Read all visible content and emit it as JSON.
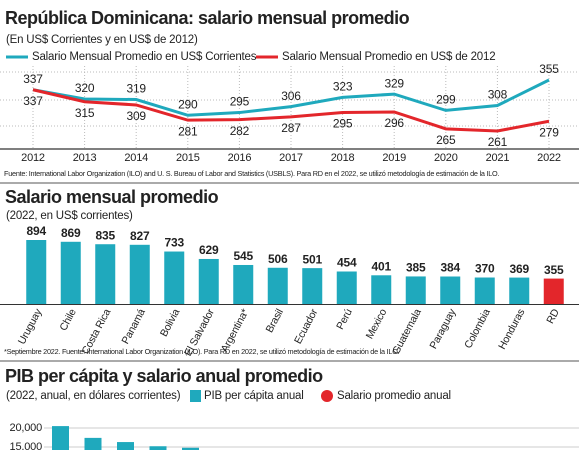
{
  "chart_data": [
    {
      "type": "line",
      "title": "República Dominicana: salario mensual promedio",
      "subtitle": "(En US$ Corrientes y en US$ de 2012)",
      "categories": [
        "2012",
        "2013",
        "2014",
        "2015",
        "2016",
        "2017",
        "2018",
        "2019",
        "2020",
        "2021",
        "2022"
      ],
      "series": [
        {
          "name": "Salario Mensual Promedio en US$ Corrientes",
          "color": "#1fa9bd",
          "values": [
            337,
            320,
            319,
            290,
            295,
            306,
            323,
            329,
            299,
            308,
            355
          ]
        },
        {
          "name": "Salario Mensual Promedio en US$ de 2012",
          "color": "#e3262b",
          "values": [
            337,
            315,
            309,
            281,
            282,
            287,
            295,
            296,
            265,
            261,
            279
          ]
        }
      ],
      "source": "Fuente: International Labor Organization (ILO) and U. S. Bureau of Labor and Statistics (USBLS). Para RD en el 2022, se utilizó metodología de estimación de la ILO."
    },
    {
      "type": "bar",
      "title": "Salario mensual promedio",
      "subtitle": "(2022, en US$ corrientes)",
      "categories": [
        "Uruguay",
        "Chile",
        "Costa Rica",
        "Panamá",
        "Bolivia",
        "El Salvador",
        "Argentina*",
        "Brasil",
        "Ecuador",
        "Perú",
        "Mexico",
        "Guatemala",
        "Paraguay",
        "Colombia",
        "Honduras",
        "RD"
      ],
      "values": [
        894,
        869,
        835,
        827,
        733,
        629,
        545,
        506,
        501,
        454,
        401,
        385,
        384,
        370,
        369,
        355
      ],
      "colors": [
        "#1fa9bd",
        "#1fa9bd",
        "#1fa9bd",
        "#1fa9bd",
        "#1fa9bd",
        "#1fa9bd",
        "#1fa9bd",
        "#1fa9bd",
        "#1fa9bd",
        "#1fa9bd",
        "#1fa9bd",
        "#1fa9bd",
        "#1fa9bd",
        "#1fa9bd",
        "#1fa9bd",
        "#e3262b"
      ],
      "source": "*Septiembre 2022. Fuente: International Labor Organization (ILO). Para RD en 2022, se utilizó metodología de estimación de la ILO."
    },
    {
      "type": "bar",
      "title": "PIB per cápita y salario anual promedio",
      "subtitle": "(2022, anual, en dólares corrientes)",
      "categories": [
        null,
        null,
        null,
        null,
        null
      ],
      "series": [
        {
          "name": "PIB per cápita anual",
          "color": "#1fa9bd",
          "values": [
            20500,
            17400,
            16300,
            15200,
            14800
          ]
        },
        {
          "name": "Salario promedio anual",
          "color": "#e3262b",
          "values": [
            null,
            null,
            null,
            null,
            null
          ]
        }
      ],
      "ylim": [
        14500,
        21000
      ],
      "yticks": [
        {
          "value": 20000,
          "label": "20,000"
        },
        {
          "value": 15000,
          "label": "15,000"
        }
      ]
    }
  ]
}
